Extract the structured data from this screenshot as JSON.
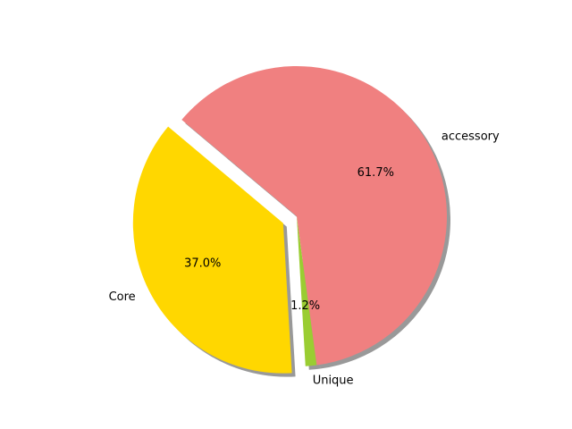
{
  "chart_data": {
    "type": "pie",
    "title": "",
    "slices": [
      {
        "label": "Core",
        "value": 37.0,
        "pct_label": "37.0%",
        "color": "#ffd700",
        "exploded": true
      },
      {
        "label": "Unique",
        "value": 1.2,
        "pct_label": "1.2%",
        "color": "#9acd32",
        "exploded": false
      },
      {
        "label": "accessory",
        "value": 61.7,
        "pct_label": "61.7%",
        "color": "#f08080",
        "exploded": false
      }
    ],
    "shadow": true,
    "start_angle_deg": 140,
    "legend": "none"
  }
}
